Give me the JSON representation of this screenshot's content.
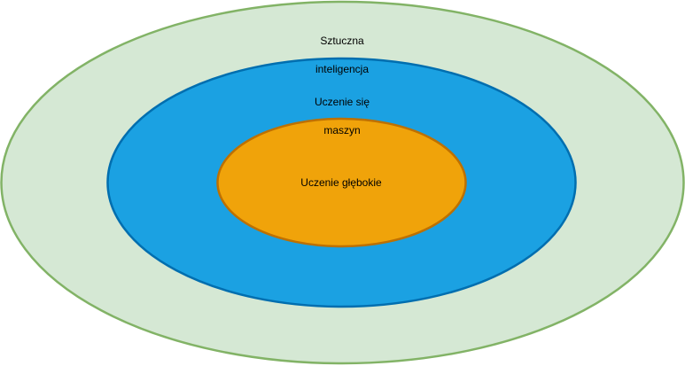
{
  "diagram": {
    "outer": {
      "label_line1": "Sztuczna",
      "label_line2": "inteligencja",
      "fill": "#d5e8d4",
      "stroke": "#82b366"
    },
    "middle": {
      "label_line1": "Uczenie się",
      "label_line2": "maszyn",
      "fill": "#1ba1e2",
      "stroke": "#006eaf"
    },
    "inner": {
      "label": "Uczenie głębokie",
      "fill": "#f0a30a",
      "stroke": "#bd7000"
    }
  }
}
